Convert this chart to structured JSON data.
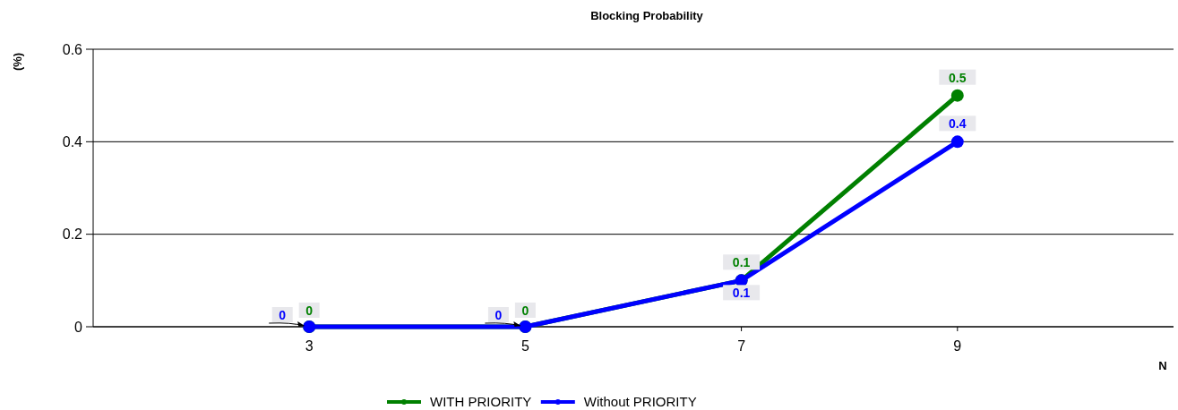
{
  "chart_data": {
    "type": "line",
    "title": "Blocking Probability",
    "xlabel": "N",
    "ylabel": "(%)",
    "x": [
      3,
      5,
      7,
      9
    ],
    "series": [
      {
        "name": "WITH PRIORITY",
        "color": "#008000",
        "values": [
          0,
          0,
          0.1,
          0.5
        ]
      },
      {
        "name": "Without PRIORITY",
        "color": "#0000ff",
        "values": [
          0,
          0,
          0.1,
          0.4
        ]
      }
    ],
    "xlim": [
      1,
      11
    ],
    "xticks": [
      3,
      5,
      7,
      9
    ],
    "ylim": [
      0,
      0.6
    ],
    "yticks": [
      0,
      0.2,
      0.4,
      0.6
    ],
    "grid": "y",
    "legend": "bottom",
    "marker": "circle",
    "line_style": "solid",
    "data_labels": true
  }
}
